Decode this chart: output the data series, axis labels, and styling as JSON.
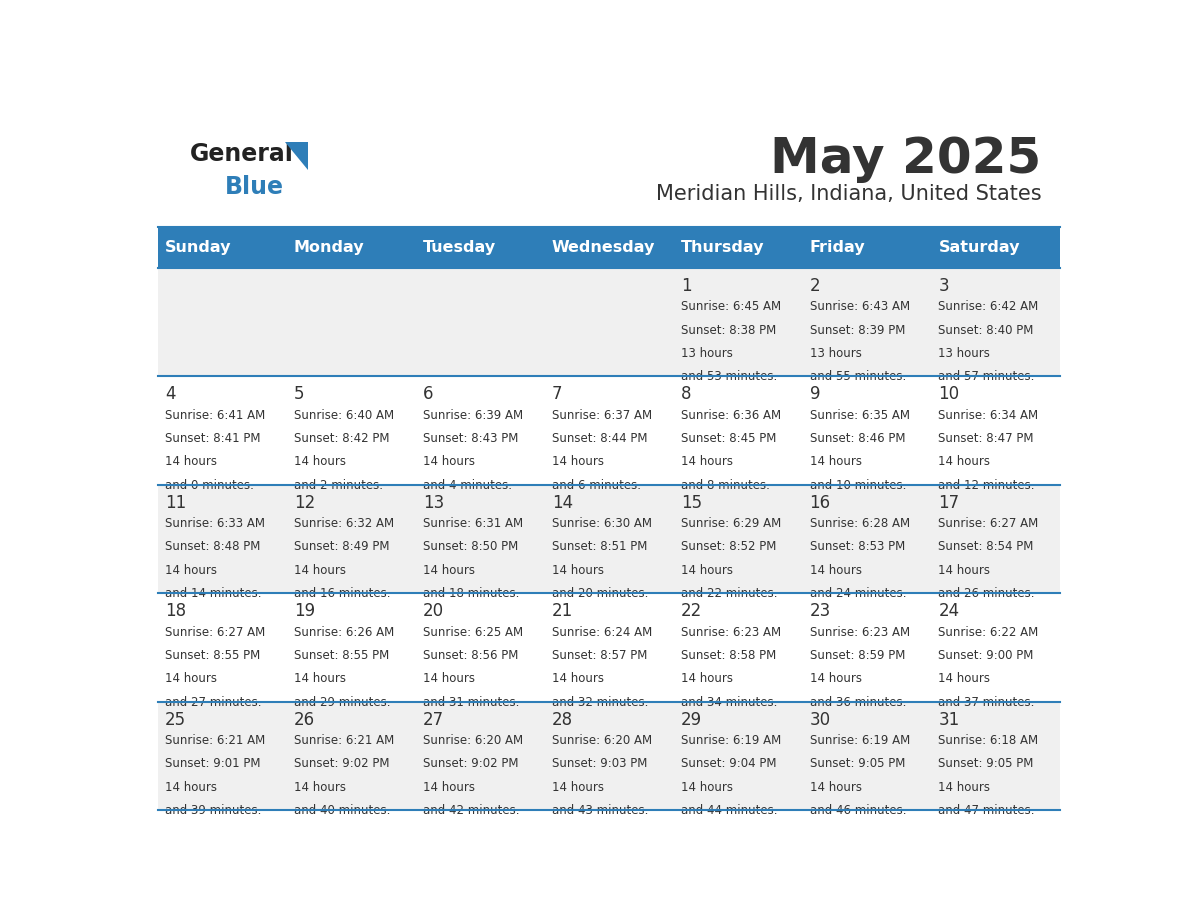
{
  "title": "May 2025",
  "subtitle": "Meridian Hills, Indiana, United States",
  "header_bg": "#2E7EB8",
  "header_text_color": "#FFFFFF",
  "cell_bg_odd": "#F0F0F0",
  "cell_bg_even": "#FFFFFF",
  "line_color": "#2E7EB8",
  "text_color": "#333333",
  "days_of_week": [
    "Sunday",
    "Monday",
    "Tuesday",
    "Wednesday",
    "Thursday",
    "Friday",
    "Saturday"
  ],
  "calendar_data": [
    [
      {
        "day": null,
        "sunrise": null,
        "sunset": null,
        "daylight": null
      },
      {
        "day": null,
        "sunrise": null,
        "sunset": null,
        "daylight": null
      },
      {
        "day": null,
        "sunrise": null,
        "sunset": null,
        "daylight": null
      },
      {
        "day": null,
        "sunrise": null,
        "sunset": null,
        "daylight": null
      },
      {
        "day": 1,
        "sunrise": "6:45 AM",
        "sunset": "8:38 PM",
        "daylight": "13 hours\nand 53 minutes."
      },
      {
        "day": 2,
        "sunrise": "6:43 AM",
        "sunset": "8:39 PM",
        "daylight": "13 hours\nand 55 minutes."
      },
      {
        "day": 3,
        "sunrise": "6:42 AM",
        "sunset": "8:40 PM",
        "daylight": "13 hours\nand 57 minutes."
      }
    ],
    [
      {
        "day": 4,
        "sunrise": "6:41 AM",
        "sunset": "8:41 PM",
        "daylight": "14 hours\nand 0 minutes."
      },
      {
        "day": 5,
        "sunrise": "6:40 AM",
        "sunset": "8:42 PM",
        "daylight": "14 hours\nand 2 minutes."
      },
      {
        "day": 6,
        "sunrise": "6:39 AM",
        "sunset": "8:43 PM",
        "daylight": "14 hours\nand 4 minutes."
      },
      {
        "day": 7,
        "sunrise": "6:37 AM",
        "sunset": "8:44 PM",
        "daylight": "14 hours\nand 6 minutes."
      },
      {
        "day": 8,
        "sunrise": "6:36 AM",
        "sunset": "8:45 PM",
        "daylight": "14 hours\nand 8 minutes."
      },
      {
        "day": 9,
        "sunrise": "6:35 AM",
        "sunset": "8:46 PM",
        "daylight": "14 hours\nand 10 minutes."
      },
      {
        "day": 10,
        "sunrise": "6:34 AM",
        "sunset": "8:47 PM",
        "daylight": "14 hours\nand 12 minutes."
      }
    ],
    [
      {
        "day": 11,
        "sunrise": "6:33 AM",
        "sunset": "8:48 PM",
        "daylight": "14 hours\nand 14 minutes."
      },
      {
        "day": 12,
        "sunrise": "6:32 AM",
        "sunset": "8:49 PM",
        "daylight": "14 hours\nand 16 minutes."
      },
      {
        "day": 13,
        "sunrise": "6:31 AM",
        "sunset": "8:50 PM",
        "daylight": "14 hours\nand 18 minutes."
      },
      {
        "day": 14,
        "sunrise": "6:30 AM",
        "sunset": "8:51 PM",
        "daylight": "14 hours\nand 20 minutes."
      },
      {
        "day": 15,
        "sunrise": "6:29 AM",
        "sunset": "8:52 PM",
        "daylight": "14 hours\nand 22 minutes."
      },
      {
        "day": 16,
        "sunrise": "6:28 AM",
        "sunset": "8:53 PM",
        "daylight": "14 hours\nand 24 minutes."
      },
      {
        "day": 17,
        "sunrise": "6:27 AM",
        "sunset": "8:54 PM",
        "daylight": "14 hours\nand 26 minutes."
      }
    ],
    [
      {
        "day": 18,
        "sunrise": "6:27 AM",
        "sunset": "8:55 PM",
        "daylight": "14 hours\nand 27 minutes."
      },
      {
        "day": 19,
        "sunrise": "6:26 AM",
        "sunset": "8:55 PM",
        "daylight": "14 hours\nand 29 minutes."
      },
      {
        "day": 20,
        "sunrise": "6:25 AM",
        "sunset": "8:56 PM",
        "daylight": "14 hours\nand 31 minutes."
      },
      {
        "day": 21,
        "sunrise": "6:24 AM",
        "sunset": "8:57 PM",
        "daylight": "14 hours\nand 32 minutes."
      },
      {
        "day": 22,
        "sunrise": "6:23 AM",
        "sunset": "8:58 PM",
        "daylight": "14 hours\nand 34 minutes."
      },
      {
        "day": 23,
        "sunrise": "6:23 AM",
        "sunset": "8:59 PM",
        "daylight": "14 hours\nand 36 minutes."
      },
      {
        "day": 24,
        "sunrise": "6:22 AM",
        "sunset": "9:00 PM",
        "daylight": "14 hours\nand 37 minutes."
      }
    ],
    [
      {
        "day": 25,
        "sunrise": "6:21 AM",
        "sunset": "9:01 PM",
        "daylight": "14 hours\nand 39 minutes."
      },
      {
        "day": 26,
        "sunrise": "6:21 AM",
        "sunset": "9:02 PM",
        "daylight": "14 hours\nand 40 minutes."
      },
      {
        "day": 27,
        "sunrise": "6:20 AM",
        "sunset": "9:02 PM",
        "daylight": "14 hours\nand 42 minutes."
      },
      {
        "day": 28,
        "sunrise": "6:20 AM",
        "sunset": "9:03 PM",
        "daylight": "14 hours\nand 43 minutes."
      },
      {
        "day": 29,
        "sunrise": "6:19 AM",
        "sunset": "9:04 PM",
        "daylight": "14 hours\nand 44 minutes."
      },
      {
        "day": 30,
        "sunrise": "6:19 AM",
        "sunset": "9:05 PM",
        "daylight": "14 hours\nand 46 minutes."
      },
      {
        "day": 31,
        "sunrise": "6:18 AM",
        "sunset": "9:05 PM",
        "daylight": "14 hours\nand 47 minutes."
      }
    ]
  ],
  "logo_color_general": "#222222",
  "logo_color_blue": "#2E7EB8"
}
